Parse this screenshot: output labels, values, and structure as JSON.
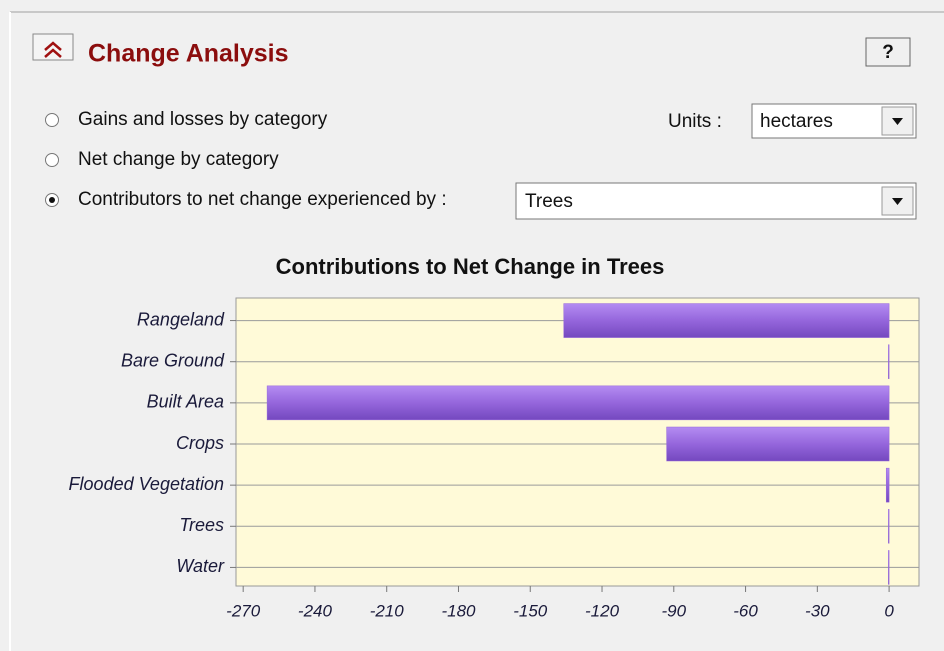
{
  "panel": {
    "title": "Change Analysis",
    "help": "?"
  },
  "options": [
    "Gains and losses by category",
    "Net change by category",
    "Contributors to net change experienced by :"
  ],
  "selected_option": 2,
  "units": {
    "label": "Units :",
    "value": "hectares"
  },
  "category_select": {
    "value": "Trees"
  },
  "chart_data": {
    "type": "hbar",
    "title": "Contributions to Net Change in Trees",
    "categories": [
      "Rangeland",
      "Bare Ground",
      "Built Area",
      "Crops",
      "Flooded Vegetation",
      "Trees",
      "Water"
    ],
    "values": [
      -136,
      -0.3,
      -260,
      -93,
      -1.2,
      -0.3,
      -0.3
    ],
    "color": "#9566dc",
    "xlim": [
      -273,
      12.5
    ],
    "xticks": [
      -270,
      -240,
      -210,
      -180,
      -150,
      -120,
      -90,
      -60,
      -30,
      0
    ],
    "grid": true
  }
}
